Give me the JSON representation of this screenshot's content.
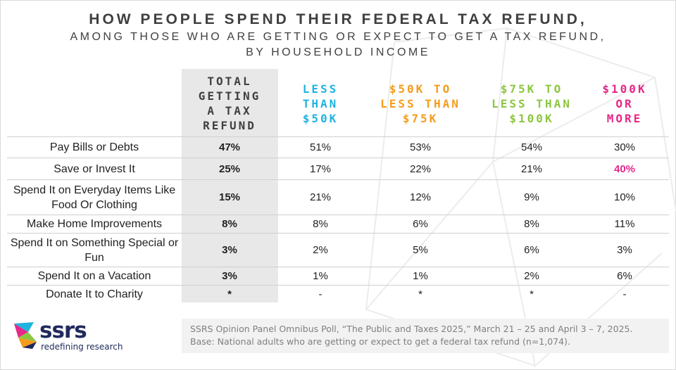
{
  "title": {
    "line1": "HOW PEOPLE SPEND THEIR FEDERAL TAX REFUND,",
    "line2": "AMONG THOSE WHO ARE GETTING OR EXPECT TO GET A TAX REFUND,",
    "line3": "BY HOUSEHOLD INCOME"
  },
  "colors": {
    "total": "#404040",
    "lt50": "#1fb3e0",
    "50to75": "#f39c1e",
    "75to100": "#8dc63f",
    "100plus": "#e6288a",
    "highlight": "#e6288a"
  },
  "chart_data": {
    "type": "table",
    "columns": [
      "TOTAL GETTING A TAX REFUND",
      "LESS THAN $50K",
      "$50K TO LESS THAN $75K",
      "$75K TO LESS THAN $100K",
      "$100K OR MORE"
    ],
    "rows": [
      {
        "label": "Pay Bills or Debts",
        "values": [
          "47%",
          "51%",
          "53%",
          "54%",
          "30%"
        ]
      },
      {
        "label": "Save or Invest It",
        "values": [
          "25%",
          "17%",
          "22%",
          "21%",
          "40%"
        ]
      },
      {
        "label": "Spend It on Everyday Items Like Food Or Clothing",
        "values": [
          "15%",
          "21%",
          "12%",
          "9%",
          "10%"
        ]
      },
      {
        "label": "Make Home Improvements",
        "values": [
          "8%",
          "8%",
          "6%",
          "8%",
          "11%"
        ]
      },
      {
        "label": "Spend It on Something Special or Fun",
        "values": [
          "3%",
          "2%",
          "5%",
          "6%",
          "3%"
        ]
      },
      {
        "label": "Spend It on a Vacation",
        "values": [
          "3%",
          "1%",
          "1%",
          "2%",
          "6%"
        ]
      },
      {
        "label": "Donate It to Charity",
        "values": [
          "*",
          "-",
          "*",
          "*",
          "-"
        ]
      }
    ],
    "highlighted_cell": {
      "row": 1,
      "col": 4
    }
  },
  "headers": {
    "total": "TOTAL\nGETTING\nA TAX\nREFUND",
    "lt50": "LESS\nTHAN\n$50K",
    "50to75": "$50K TO\nLESS THAN\n$75K",
    "75to100": "$75K TO\nLESS THAN\n$100K",
    "100plus": "$100K\nOR\nMORE"
  },
  "row_labels": {
    "r0": "Pay Bills or Debts",
    "r1": "Save or Invest It",
    "r2": "Spend It on Everyday Items Like Food Or Clothing",
    "r3": "Make Home Improvements",
    "r4": "Spend It on Something Special or Fun",
    "r5": "Spend It on a Vacation",
    "r6": "Donate It to Charity"
  },
  "footer": {
    "source": "SSRS Opinion Panel Omnibus Poll, “The Public and Taxes 2025,” March 21 – 25 and April 3 – 7, 2025.",
    "base": "Base: National adults who are getting or expect to get a federal tax refund (n=1,074)."
  },
  "logo": {
    "wordmark": "ssrs",
    "tagline": "redefining research",
    "icon": "ssrs-logo-icon"
  }
}
